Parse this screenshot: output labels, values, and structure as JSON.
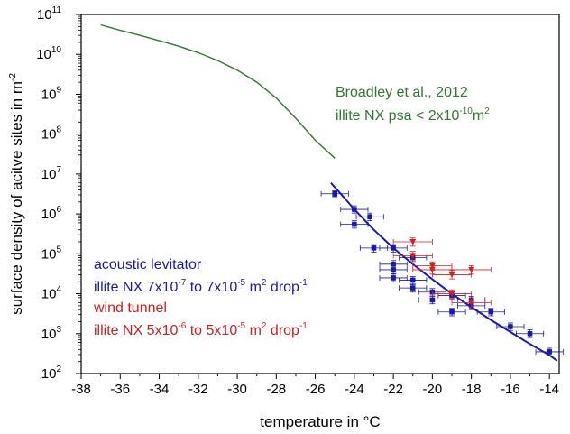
{
  "chart_data": {
    "type": "scatter",
    "title": "",
    "xlabel": "temperature in °C",
    "ylabel": "surface density of acitve sites in m",
    "ylabel_sup": "-2",
    "xlim": [
      -38,
      -13.5
    ],
    "ylim_log10": [
      2,
      11
    ],
    "y_scale": "log",
    "x_ticks": [
      -38,
      -36,
      -34,
      -32,
      -30,
      -28,
      -26,
      -24,
      -22,
      -20,
      -18,
      -16,
      -14
    ],
    "y_tick_exponents": [
      2,
      3,
      4,
      5,
      6,
      7,
      8,
      9,
      10,
      11
    ],
    "y_tick_base": "10",
    "grid": false,
    "series": [
      {
        "key": "broadley",
        "kind": "line",
        "color": "#2d7a2d",
        "points": [
          [
            -37,
            55000000000.0
          ],
          [
            -36,
            40000000000.0
          ],
          [
            -35,
            30000000000.0
          ],
          [
            -34,
            22000000000.0
          ],
          [
            -33,
            16000000000.0
          ],
          [
            -32,
            11000000000.0
          ],
          [
            -31,
            7000000000.0
          ],
          [
            -30,
            4000000000.0
          ],
          [
            -29,
            2000000000.0
          ],
          [
            -28,
            800000000.0
          ],
          [
            -27,
            250000000.0
          ],
          [
            -26,
            70000000.0
          ],
          [
            -25,
            25000000.0
          ]
        ]
      },
      {
        "key": "fit",
        "kind": "line",
        "color": "#1a1aa6",
        "points": [
          [
            -25.2,
            6000000.0
          ],
          [
            -24.5,
            2500000.0
          ],
          [
            -24,
            1300000.0
          ],
          [
            -23,
            400000.0
          ],
          [
            -22,
            140000.0
          ],
          [
            -21,
            55000.0
          ],
          [
            -20,
            23000.0
          ],
          [
            -19,
            10000.0
          ],
          [
            -18,
            4600.0
          ],
          [
            -17,
            2200.0
          ],
          [
            -16,
            1100.0
          ],
          [
            -15,
            550
          ],
          [
            -14,
            290
          ],
          [
            -13.6,
            210
          ]
        ]
      },
      {
        "key": "levitator",
        "kind": "points",
        "marker": "square",
        "color": "#1a1aa6",
        "points": [
          {
            "x": -25,
            "y": 3200000.0,
            "xerr": 0.7,
            "ylo": 2700000.0,
            "yhi": 3800000.0
          },
          {
            "x": -24,
            "y": 1300000.0,
            "xerr": 0.7,
            "ylo": 1050000.0,
            "yhi": 1600000.0
          },
          {
            "x": -24,
            "y": 550000.0,
            "xerr": 0.7,
            "ylo": 440000.0,
            "yhi": 680000.0
          },
          {
            "x": -23.2,
            "y": 850000.0,
            "xerr": 0.7,
            "ylo": 680000.0,
            "yhi": 1050000.0
          },
          {
            "x": -23,
            "y": 140000.0,
            "xerr": 0.7,
            "ylo": 110000.0,
            "yhi": 170000.0
          },
          {
            "x": -22,
            "y": 140000.0,
            "xerr": 0.7,
            "ylo": 110000.0,
            "yhi": 170000.0
          },
          {
            "x": -22,
            "y": 55000.0,
            "xerr": 0.7,
            "ylo": 44000.0,
            "yhi": 68000.0
          },
          {
            "x": -22,
            "y": 40000.0,
            "xerr": 0.7,
            "ylo": 32000.0,
            "yhi": 50000.0
          },
          {
            "x": -22,
            "y": 25000.0,
            "xerr": 0.7,
            "ylo": 20000.0,
            "yhi": 31000.0
          },
          {
            "x": -21,
            "y": 80000.0,
            "xerr": 0.7,
            "ylo": 64000.0,
            "yhi": 100000.0
          },
          {
            "x": -21,
            "y": 22000.0,
            "xerr": 0.7,
            "ylo": 17500.0,
            "yhi": 27000.0
          },
          {
            "x": -21,
            "y": 14000.0,
            "xerr": 0.7,
            "ylo": 11000.0,
            "yhi": 17000.0
          },
          {
            "x": -20,
            "y": 11000.0,
            "xerr": 0.7,
            "ylo": 8800.0,
            "yhi": 13500.0
          },
          {
            "x": -20,
            "y": 7000.0,
            "xerr": 0.7,
            "ylo": 5600.0,
            "yhi": 8600.0
          },
          {
            "x": -19,
            "y": 9000.0,
            "xerr": 0.7,
            "ylo": 7200.0,
            "yhi": 11000.0
          },
          {
            "x": -19,
            "y": 3500.0,
            "xerr": 0.7,
            "ylo": 2800.0,
            "yhi": 4300.0
          },
          {
            "x": -18,
            "y": 7000.0,
            "xerr": 0.7,
            "ylo": 5600.0,
            "yhi": 8600.0
          },
          {
            "x": -18,
            "y": 5000.0,
            "xerr": 0.7,
            "ylo": 4000.0,
            "yhi": 6200.0
          },
          {
            "x": -17,
            "y": 3500.0,
            "xerr": 0.7,
            "ylo": 2800.0,
            "yhi": 4300.0
          },
          {
            "x": -16,
            "y": 1500.0,
            "xerr": 0.7,
            "ylo": 1200.0,
            "yhi": 1850.0
          },
          {
            "x": -15,
            "y": 1000.0,
            "xerr": 0.7,
            "ylo": 800,
            "yhi": 1250.0
          },
          {
            "x": -14,
            "y": 350,
            "xerr": 0.7,
            "ylo": 280,
            "yhi": 430
          }
        ]
      },
      {
        "key": "wind_tunnel",
        "kind": "points",
        "marker": "triangle-down",
        "color": "#cc2222",
        "points": [
          {
            "x": -21,
            "y": 200000.0,
            "xerr": 1.0,
            "ylo": 155000.0,
            "yhi": 250000.0
          },
          {
            "x": -21,
            "y": 90000.0,
            "xerr": 1.0,
            "ylo": 70000.0,
            "yhi": 115000.0
          },
          {
            "x": -20,
            "y": 50000.0,
            "xerr": 1.0,
            "ylo": 39000.0,
            "yhi": 63000.0
          },
          {
            "x": -20,
            "y": 40000.0,
            "xerr": 1.0,
            "ylo": 31000.0,
            "yhi": 50000.0
          },
          {
            "x": -19,
            "y": 30000.0,
            "xerr": 1.0,
            "ylo": 23500.0,
            "yhi": 38000.0
          },
          {
            "x": -18,
            "y": 40000.0,
            "xerr": 1.0,
            "ylo": 31000.0,
            "yhi": 50000.0
          },
          {
            "x": -19,
            "y": 10000.0,
            "xerr": 1.0,
            "ylo": 7800.0,
            "yhi": 12500.0
          },
          {
            "x": -18,
            "y": 6000.0,
            "xerr": 1.0,
            "ylo": 4700.0,
            "yhi": 7600.0
          }
        ]
      }
    ],
    "annotations": {
      "broadley": {
        "color": "#2d7a2d",
        "line1": "Broadley et al., 2012",
        "line2_pre": "illite NX psa < 2x10",
        "line2_sup1": "-10",
        "line2_mid": "m",
        "line2_sup2": "2"
      },
      "levitator": {
        "color": "#1a1aa6",
        "line1": "acoustic levitator",
        "line2_a": "illite NX 7x10",
        "line2_sup_a": "-7",
        "line2_b": " to 7x10",
        "line2_sup_b": "-5",
        "line2_c": " m",
        "line2_sup_c": "2",
        "line2_d": " drop",
        "line2_sup_d": "-1"
      },
      "wind_tunnel": {
        "color": "#cc2222",
        "line1": "wind tunnel",
        "line2_a": "illite NX 5x10",
        "line2_sup_a": "-6",
        "line2_b": " to 5x10",
        "line2_sup_b": "-5",
        "line2_c": " m",
        "line2_sup_c": "2",
        "line2_d": " drop",
        "line2_sup_d": "-1"
      }
    }
  }
}
